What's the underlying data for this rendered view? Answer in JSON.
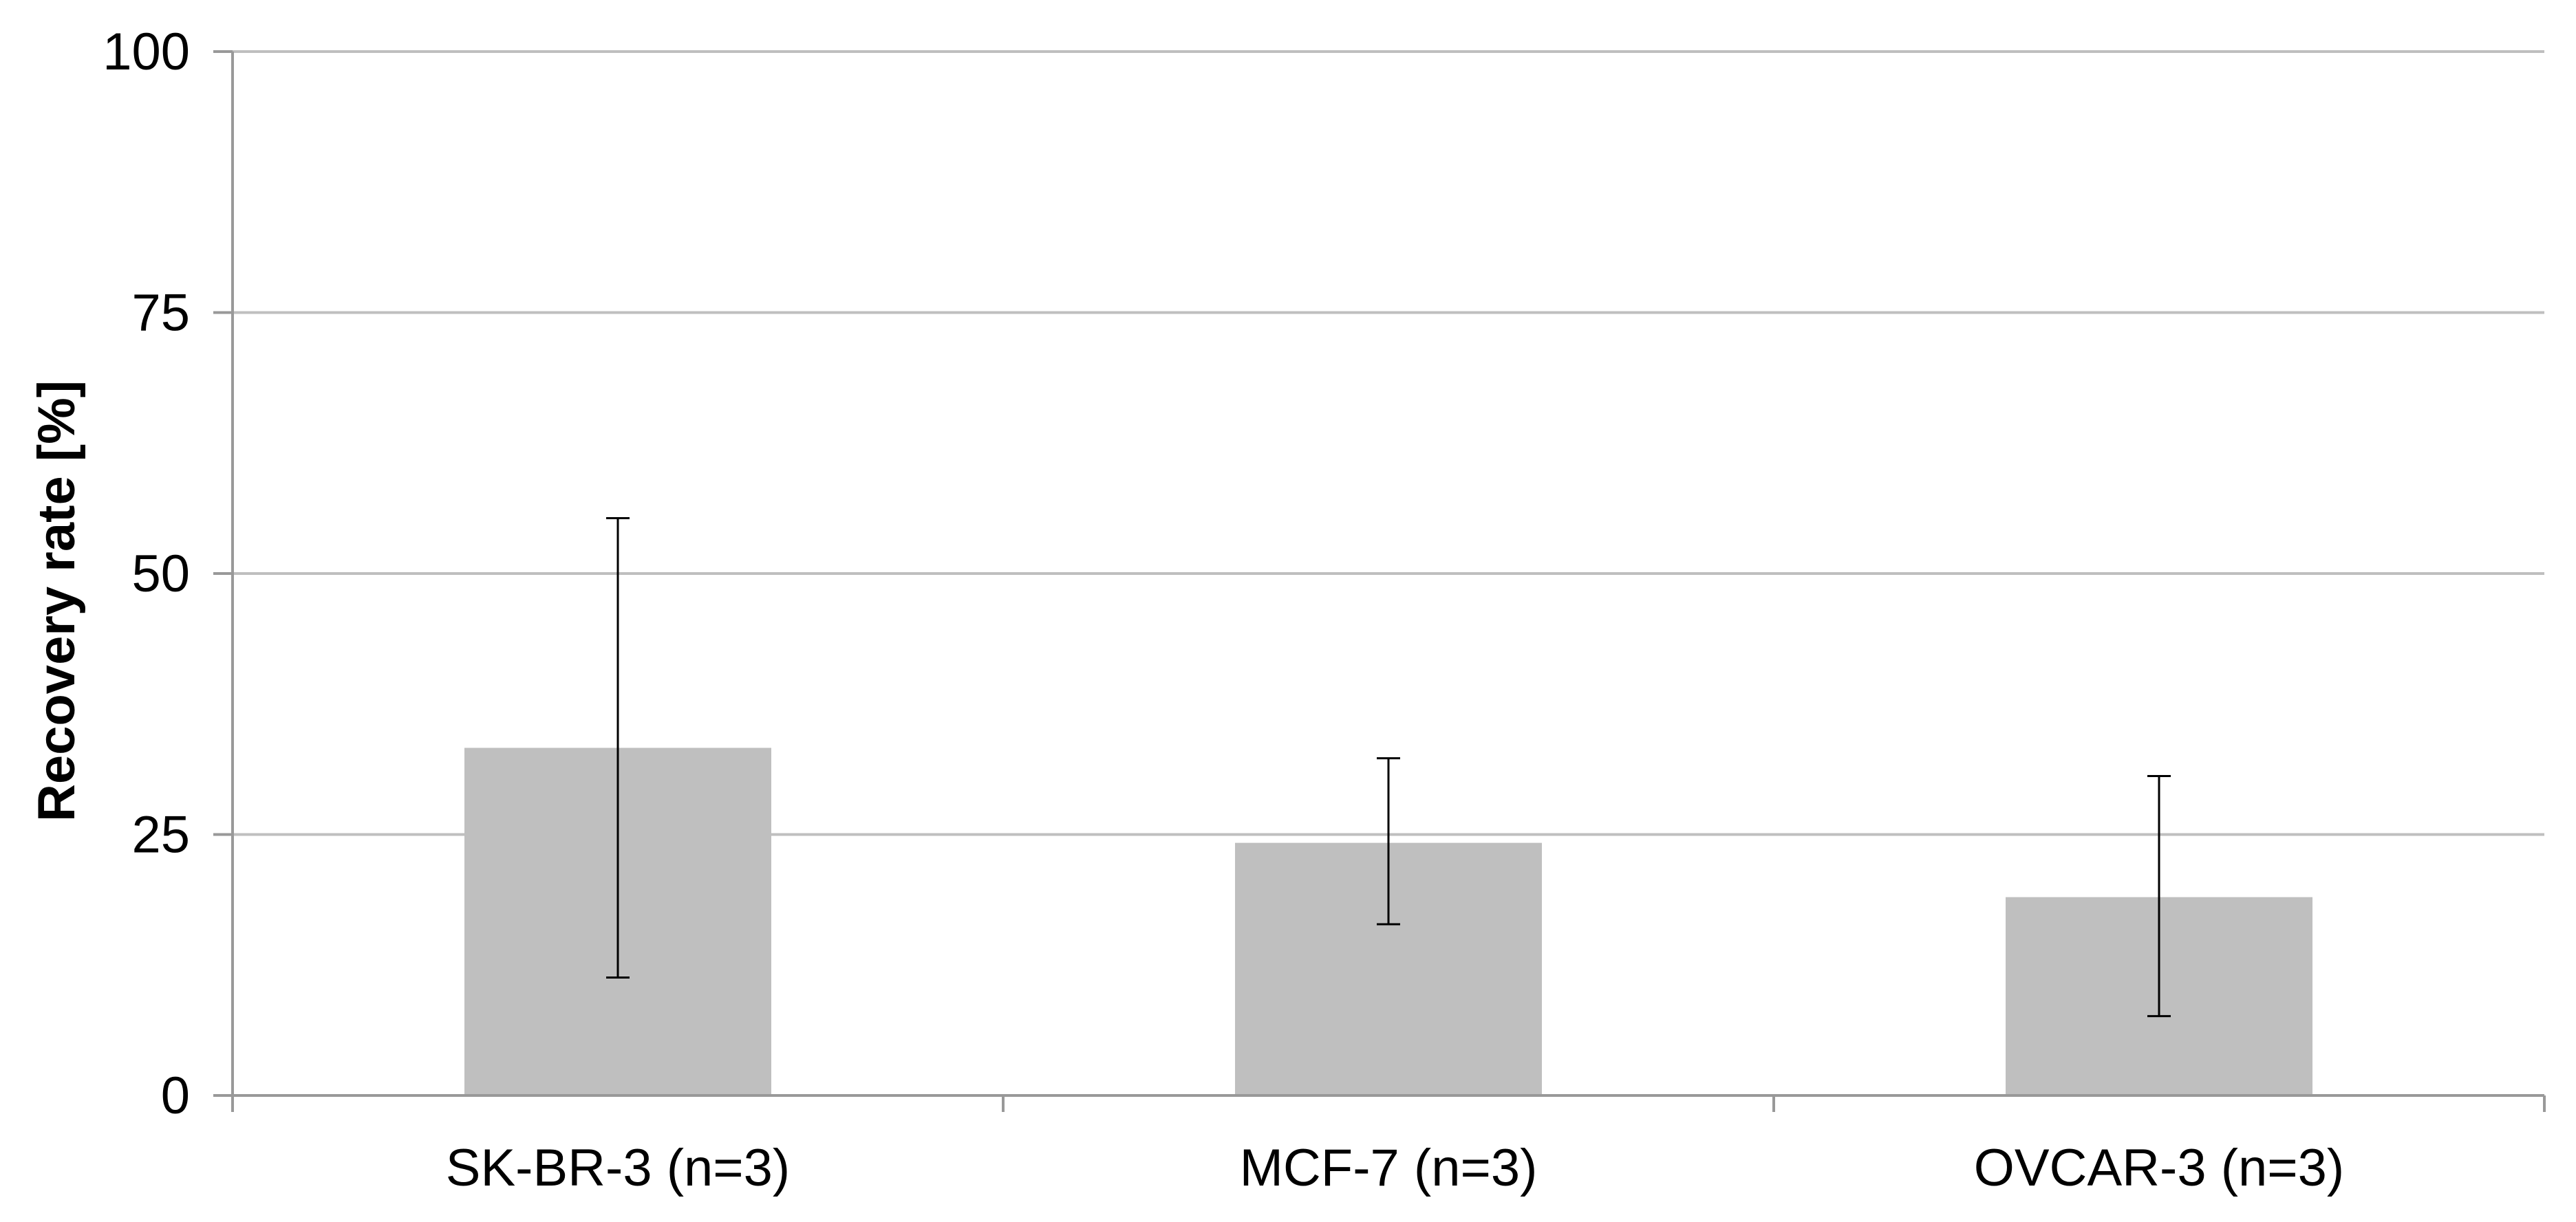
{
  "chart_data": {
    "type": "bar",
    "title": "",
    "xlabel": "",
    "ylabel": "Recovery rate [%]",
    "ylim": [
      0,
      100
    ],
    "yticks": [
      0,
      25,
      50,
      75,
      100
    ],
    "grid": true,
    "categories": [
      "SK-BR-3 (n=3)",
      "MCF-7 (n=3)",
      "OVCAR-3 (n=3)"
    ],
    "values": [
      33.3,
      24.2,
      19.0
    ],
    "error_low": [
      11.3,
      16.4,
      7.6
    ],
    "error_high": [
      55.3,
      32.3,
      30.6
    ],
    "colors": {
      "bar": "#bfbfbf",
      "grid": "#bfbfbf",
      "axis": "#999999",
      "error_bar": "#000000"
    }
  }
}
